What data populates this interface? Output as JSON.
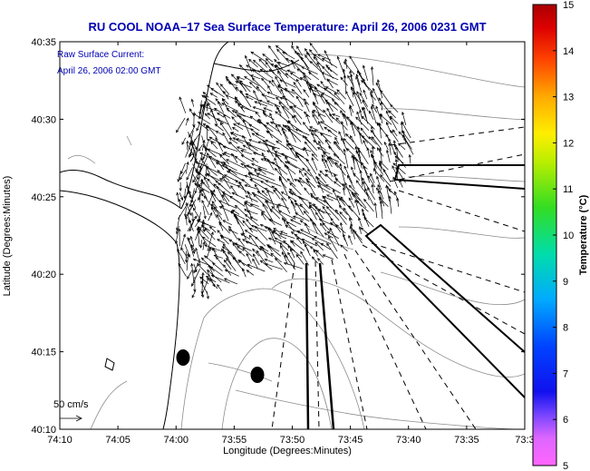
{
  "chart_data": {
    "type": "scatter",
    "title": "RU COOL  NOAA–17  Sea Surface Temperature:  April 26, 2006 0231 GMT",
    "annotation_line1": "Raw Surface Current:",
    "annotation_line2": "April 26, 2006 02:00 GMT",
    "scale_label": "50 cm/s",
    "xlabel": "Longitude (Degrees:Minutes)",
    "ylabel": "Latitude (Degrees:Minutes)",
    "x_ticks": [
      "74:10",
      "74:05",
      "74:00",
      "73:55",
      "73:50",
      "73:45",
      "73:40",
      "73:35",
      "73:3"
    ],
    "y_ticks": [
      "40:35",
      "40:30",
      "40:25",
      "40:20",
      "40:15",
      "40:10"
    ],
    "xlim_minutes_west": [
      10,
      30
    ],
    "ylim_minutes_north": [
      10,
      35
    ],
    "colorbar": {
      "label": "Temperature (°C)",
      "ticks": [
        "15",
        "14",
        "13",
        "12",
        "11",
        "10",
        "9",
        "8",
        "7",
        "6",
        "5"
      ],
      "range": [
        5,
        15
      ]
    },
    "markers": [
      {
        "lon": "73:58.8",
        "lat": "40:14.6"
      },
      {
        "lon": "73:52.3",
        "lat": "40:13.5"
      }
    ],
    "grid": false,
    "colors": {
      "title": "#0000b4",
      "coast": "#000000",
      "bathymetry": "#8c8c8c",
      "vectors": "#000000"
    }
  }
}
